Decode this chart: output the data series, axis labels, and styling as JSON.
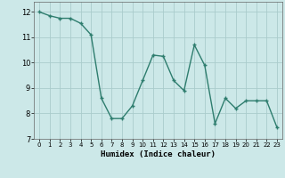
{
  "x": [
    0,
    1,
    2,
    3,
    4,
    5,
    6,
    7,
    8,
    9,
    10,
    11,
    12,
    13,
    14,
    15,
    16,
    17,
    18,
    19,
    20,
    21,
    22,
    23
  ],
  "y": [
    12.0,
    11.85,
    11.75,
    11.75,
    11.55,
    11.1,
    8.6,
    7.8,
    7.8,
    8.3,
    9.3,
    10.3,
    10.25,
    9.3,
    8.9,
    10.7,
    9.9,
    7.6,
    8.6,
    8.2,
    8.5,
    8.5,
    8.5,
    7.45
  ],
  "line_color": "#2e7d6e",
  "bg_color": "#cce8e8",
  "grid_color": "#aacccc",
  "xlabel": "Humidex (Indice chaleur)",
  "xlim": [
    -0.5,
    23.5
  ],
  "ylim": [
    7,
    12.4
  ],
  "yticks": [
    7,
    8,
    9,
    10,
    11,
    12
  ],
  "xticks": [
    0,
    1,
    2,
    3,
    4,
    5,
    6,
    7,
    8,
    9,
    10,
    11,
    12,
    13,
    14,
    15,
    16,
    17,
    18,
    19,
    20,
    21,
    22,
    23
  ],
  "marker": "+",
  "marker_size": 3.5,
  "line_width": 1.0
}
